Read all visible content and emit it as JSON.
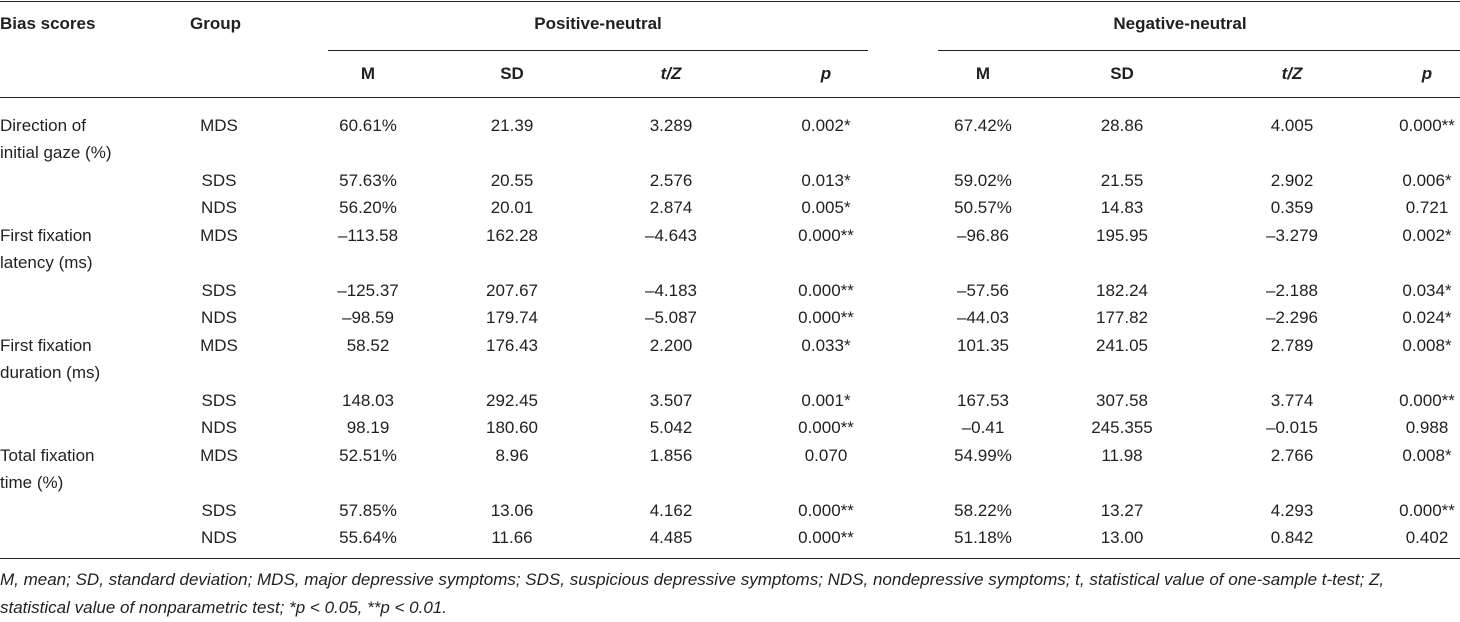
{
  "table": {
    "headers": {
      "bias_scores": "Bias scores",
      "group": "Group",
      "positive_neutral": "Positive-neutral",
      "negative_neutral": "Negative-neutral",
      "sub": {
        "m": "M",
        "sd": "SD",
        "tz": "t/Z",
        "p": "p"
      }
    },
    "rows": [
      {
        "bias": [
          "Direction of",
          "initial gaze (%)"
        ],
        "group": "MDS",
        "pos": [
          "60.61%",
          "21.39",
          "3.289",
          "0.002*"
        ],
        "neg": [
          "67.42%",
          "28.86",
          "4.005",
          "0.000**"
        ]
      },
      {
        "bias": [],
        "group": "SDS",
        "pos": [
          "57.63%",
          "20.55",
          "2.576",
          "0.013*"
        ],
        "neg": [
          "59.02%",
          "21.55",
          "2.902",
          "0.006*"
        ]
      },
      {
        "bias": [],
        "group": "NDS",
        "pos": [
          "56.20%",
          "20.01",
          "2.874",
          "0.005*"
        ],
        "neg": [
          "50.57%",
          "14.83",
          "0.359",
          "0.721"
        ]
      },
      {
        "bias": [
          "First fixation",
          "latency (ms)"
        ],
        "group": "MDS",
        "pos": [
          "–113.58",
          "162.28",
          "–4.643",
          "0.000**"
        ],
        "neg": [
          "–96.86",
          "195.95",
          "–3.279",
          "0.002*"
        ]
      },
      {
        "bias": [],
        "group": "SDS",
        "pos": [
          "–125.37",
          "207.67",
          "–4.183",
          "0.000**"
        ],
        "neg": [
          "–57.56",
          "182.24",
          "–2.188",
          "0.034*"
        ]
      },
      {
        "bias": [],
        "group": "NDS",
        "pos": [
          "–98.59",
          "179.74",
          "–5.087",
          "0.000**"
        ],
        "neg": [
          "–44.03",
          "177.82",
          "–2.296",
          "0.024*"
        ]
      },
      {
        "bias": [
          "First fixation",
          "duration (ms)"
        ],
        "group": "MDS",
        "pos": [
          "58.52",
          "176.43",
          "2.200",
          "0.033*"
        ],
        "neg": [
          "101.35",
          "241.05",
          "2.789",
          "0.008*"
        ]
      },
      {
        "bias": [],
        "group": "SDS",
        "pos": [
          "148.03",
          "292.45",
          "3.507",
          "0.001*"
        ],
        "neg": [
          "167.53",
          "307.58",
          "3.774",
          "0.000**"
        ]
      },
      {
        "bias": [],
        "group": "NDS",
        "pos": [
          "98.19",
          "180.60",
          "5.042",
          "0.000**"
        ],
        "neg": [
          "–0.41",
          "245.355",
          "–0.015",
          "0.988"
        ]
      },
      {
        "bias": [
          "Total fixation",
          "time (%)"
        ],
        "group": "MDS",
        "pos": [
          "52.51%",
          "8.96",
          "1.856",
          "0.070"
        ],
        "neg": [
          "54.99%",
          "11.98",
          "2.766",
          "0.008*"
        ]
      },
      {
        "bias": [],
        "group": "SDS",
        "pos": [
          "57.85%",
          "13.06",
          "4.162",
          "0.000**"
        ],
        "neg": [
          "58.22%",
          "13.27",
          "4.293",
          "0.000**"
        ]
      },
      {
        "bias": [],
        "group": "NDS",
        "pos": [
          "55.64%",
          "11.66",
          "4.485",
          "0.000**"
        ],
        "neg": [
          "51.18%",
          "13.00",
          "0.842",
          "0.402"
        ]
      }
    ],
    "footnote": "M, mean; SD, standard deviation; MDS, major depressive symptoms; SDS, suspicious depressive symptoms; NDS, nondepressive symptoms; t, statistical value of one-sample t-test; Z, statistical value of nonparametric test; *p < 0.05, **p < 0.01."
  }
}
